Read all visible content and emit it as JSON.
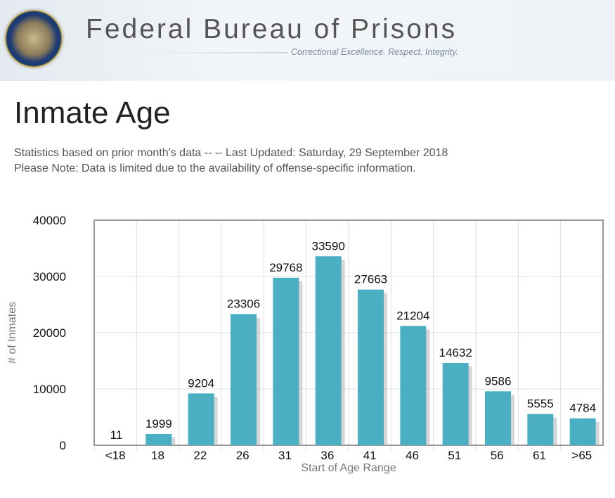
{
  "header": {
    "title": "Federal Bureau of Prisons",
    "tagline": "Correctional Excellence.  Respect.  Integrity."
  },
  "page": {
    "title": "Inmate Age",
    "note1": "Statistics based on prior month's data -- -- Last Updated: Saturday, 29 September 2018",
    "note2": "Please Note: Data is limited due to the availability of offense-specific information."
  },
  "chart_data": {
    "type": "bar",
    "title": "",
    "xlabel": "Start of Age Range",
    "ylabel": "# of Inmates",
    "categories": [
      "<18",
      "18",
      "22",
      "26",
      "31",
      "36",
      "41",
      "46",
      "51",
      "56",
      "61",
      ">65"
    ],
    "values": [
      11,
      1999,
      9204,
      23306,
      29768,
      33590,
      27663,
      21204,
      14632,
      9586,
      5555,
      4784
    ],
    "ylim": [
      0,
      40000
    ],
    "yticks": [
      0,
      10000,
      20000,
      30000,
      40000
    ],
    "grid": true,
    "bar_color": "#4bafc4"
  }
}
